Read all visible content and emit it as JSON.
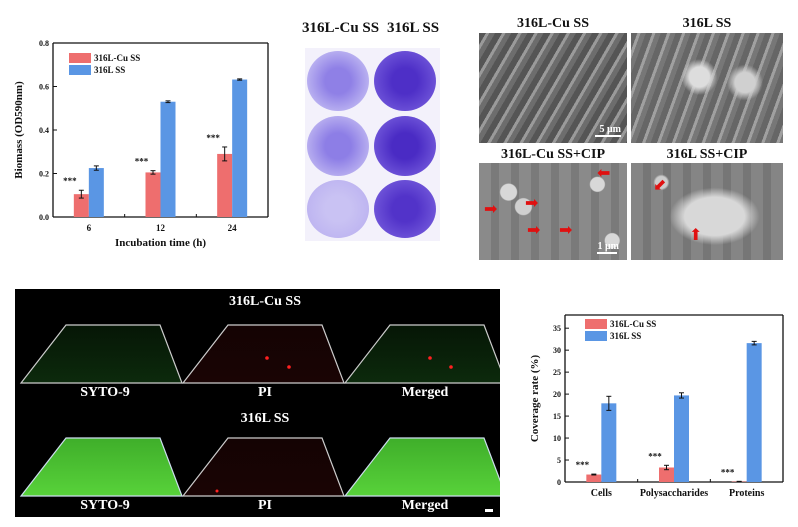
{
  "colors": {
    "cu": "#ee6e6e",
    "ss": "#5a96e4",
    "well_light": "#b5aef0",
    "well_dark": "#6b52d6"
  },
  "chart_data": [
    {
      "type": "bar",
      "title": "",
      "xlabel": "Incubation time (h)",
      "ylabel": "Biomass (OD590nm)",
      "categories": [
        "6",
        "12",
        "24"
      ],
      "ylim": [
        0,
        0.8
      ],
      "yticks": [
        "0.0",
        "0.2",
        "0.4",
        "0.6",
        "0.8"
      ],
      "legend": "top-left",
      "series": [
        {
          "name": "316L-Cu SS",
          "values": [
            0.105,
            0.205,
            0.29
          ],
          "errors": [
            0.018,
            0.008,
            0.032
          ]
        },
        {
          "name": "316L SS",
          "values": [
            0.225,
            0.53,
            0.632
          ],
          "errors": [
            0.01,
            0.004,
            0.003
          ]
        }
      ],
      "annotations": [
        "***",
        "***",
        "***"
      ]
    },
    {
      "type": "bar",
      "title": "",
      "xlabel": "",
      "ylabel": "Coverage rate (%)",
      "categories": [
        "Cells",
        "Polysaccharides",
        "Proteins"
      ],
      "ylim": [
        0,
        38
      ],
      "yticks": [
        "0",
        "5",
        "10",
        "15",
        "20",
        "25",
        "30",
        "35"
      ],
      "legend": "top-left",
      "series": [
        {
          "name": "316L-Cu SS",
          "values": [
            1.7,
            3.3,
            0.1
          ],
          "errors": [
            0.1,
            0.5,
            0.05
          ]
        },
        {
          "name": "316L SS",
          "values": [
            17.9,
            19.7,
            31.6
          ],
          "errors": [
            1.6,
            0.6,
            0.4
          ]
        }
      ],
      "annotations": [
        "***",
        "***",
        "***"
      ]
    }
  ],
  "wells": {
    "labels": [
      "316L-Cu SS",
      "316L SS"
    ]
  },
  "sem": {
    "titles": [
      "316L-Cu SS",
      "316L SS",
      "316L-Cu SS+CIP",
      "316L SS+CIP"
    ],
    "scalebars": [
      "5 μm",
      "1 μm"
    ]
  },
  "fluorescence": {
    "row_titles": [
      "316L-Cu SS",
      "316L SS"
    ],
    "channel_labels": [
      "SYTO-9",
      "PI",
      "Merged"
    ]
  }
}
